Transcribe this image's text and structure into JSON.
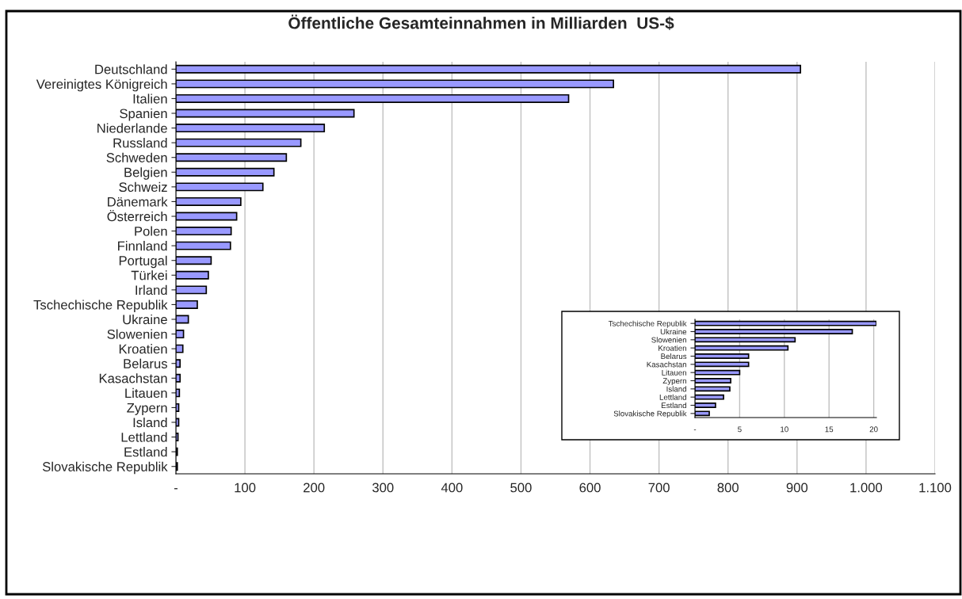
{
  "chart_data": [
    {
      "type": "bar",
      "orientation": "horizontal",
      "title": "Öffentliche Gesamteinnahmen in Milliarden  US-$",
      "categories": [
        "Deutschland",
        "Vereinigtes Königreich",
        "Italien",
        "Spanien",
        "Niederlande",
        "Russland",
        "Schweden",
        "Belgien",
        "Schweiz",
        "Dänemark",
        "Österreich",
        "Polen",
        "Finnland",
        "Portugal",
        "Türkei",
        "Irland",
        "Tschechische Republik",
        "Ukraine",
        "Slowenien",
        "Kroatien",
        "Belarus",
        "Kasachstan",
        "Litauen",
        "Zypern",
        "Island",
        "Lettland",
        "Estland",
        "Slovakische Republik"
      ],
      "values": [
        905,
        634,
        569,
        258,
        215,
        181,
        160,
        142,
        126,
        94,
        88,
        80,
        79,
        51,
        47,
        44,
        31,
        18,
        11,
        10,
        6,
        6,
        5,
        4,
        4,
        3,
        2,
        2
      ],
      "color": "#9999ff",
      "xlim": [
        0,
        1100
      ],
      "xticks": [
        {
          "value": 0,
          "label": "-"
        },
        100,
        200,
        300,
        400,
        500,
        600,
        700,
        800,
        900,
        {
          "value": 1000,
          "label": "1.000"
        },
        {
          "value": 1100,
          "label": "1.100"
        }
      ],
      "grid": "x"
    },
    {
      "type": "bar",
      "orientation": "horizontal",
      "categories": [
        "Tschechische Republik",
        "Ukraine",
        "Slowenien",
        "Kroatien",
        "Belarus",
        "Kasachstan",
        "Litauen",
        "Zypern",
        "Island",
        "Lettland",
        "Estland",
        "Slovakische Republik"
      ],
      "values": [
        20.3,
        17.6,
        11.2,
        10.4,
        6.0,
        6.0,
        5.0,
        4.0,
        3.9,
        3.2,
        2.3,
        1.6
      ],
      "color": "#9999ff",
      "xlim": [
        0,
        20.3
      ],
      "xticks": [
        {
          "value": 0,
          "label": "-"
        },
        5,
        10,
        15,
        20
      ],
      "grid": "x"
    }
  ]
}
